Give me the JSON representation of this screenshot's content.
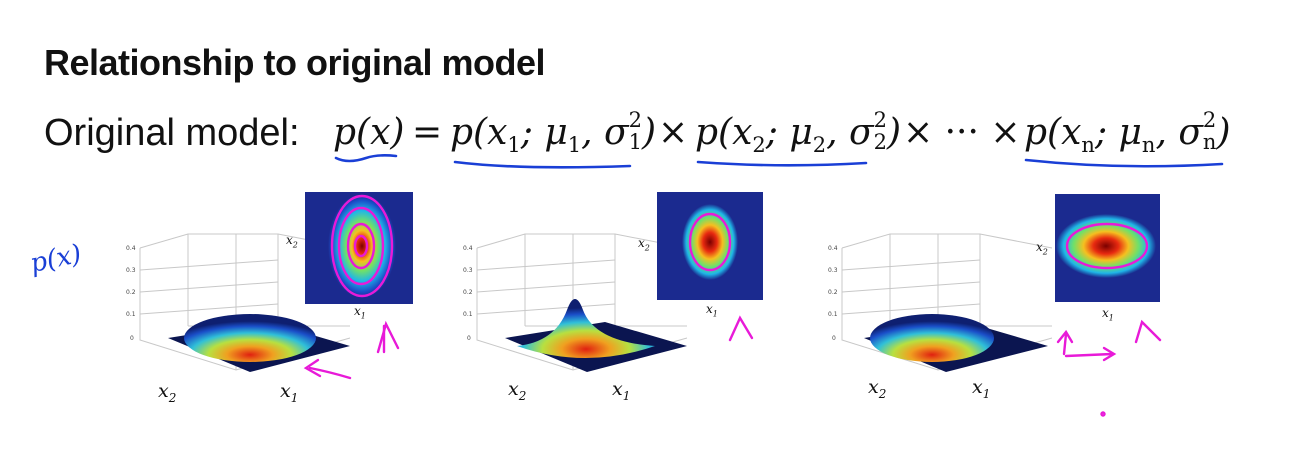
{
  "title": "Relationship to original model",
  "model": {
    "label": "Original model:",
    "lhs": "p(x)",
    "equals": "=",
    "factor1": {
      "p": "p(",
      "var": "x",
      "var_sub": "1",
      "mu": "; μ",
      "mu_sub": "1",
      "sigma": ", σ",
      "sigma_sup": "2",
      "sigma_sub": "1",
      "close": ")"
    },
    "times": "×",
    "factor2": {
      "p": "p(",
      "var": "x",
      "var_sub": "2",
      "mu": "; μ",
      "mu_sub": "2",
      "sigma": ", σ",
      "sigma_sup": "2",
      "sigma_sub": "2",
      "close": ")"
    },
    "dots": "× ··· ×",
    "factorn": {
      "p": "p(",
      "var": "x",
      "var_sub": "n",
      "mu": "; μ",
      "mu_sub": "n",
      "sigma": ", σ",
      "sigma_sup": "2",
      "sigma_sub": "n",
      "close": ")"
    }
  },
  "annotations": {
    "px": "p(x)"
  },
  "plots": [
    {
      "x2": "x",
      "x2_sub": "2",
      "x1": "x",
      "x1_sub": "1",
      "heat_x2": "x",
      "heat_x2_sub": "2",
      "heat_x1": "x",
      "heat_x1_sub": "1"
    },
    {
      "x2": "x",
      "x2_sub": "2",
      "x1": "x",
      "x1_sub": "1",
      "heat_x2": "x",
      "heat_x2_sub": "2",
      "heat_x1": "x",
      "heat_x1_sub": "1"
    },
    {
      "x2": "x",
      "x2_sub": "2",
      "x1": "x",
      "x1_sub": "1",
      "heat_x2": "x",
      "heat_x2_sub": "2",
      "heat_x1": "x",
      "heat_x1_sub": "1"
    }
  ],
  "colors": {
    "ink_blue": "#1a3fd6",
    "ink_magenta": "#e81ad8",
    "heat_bg": "#1b2a8f"
  }
}
